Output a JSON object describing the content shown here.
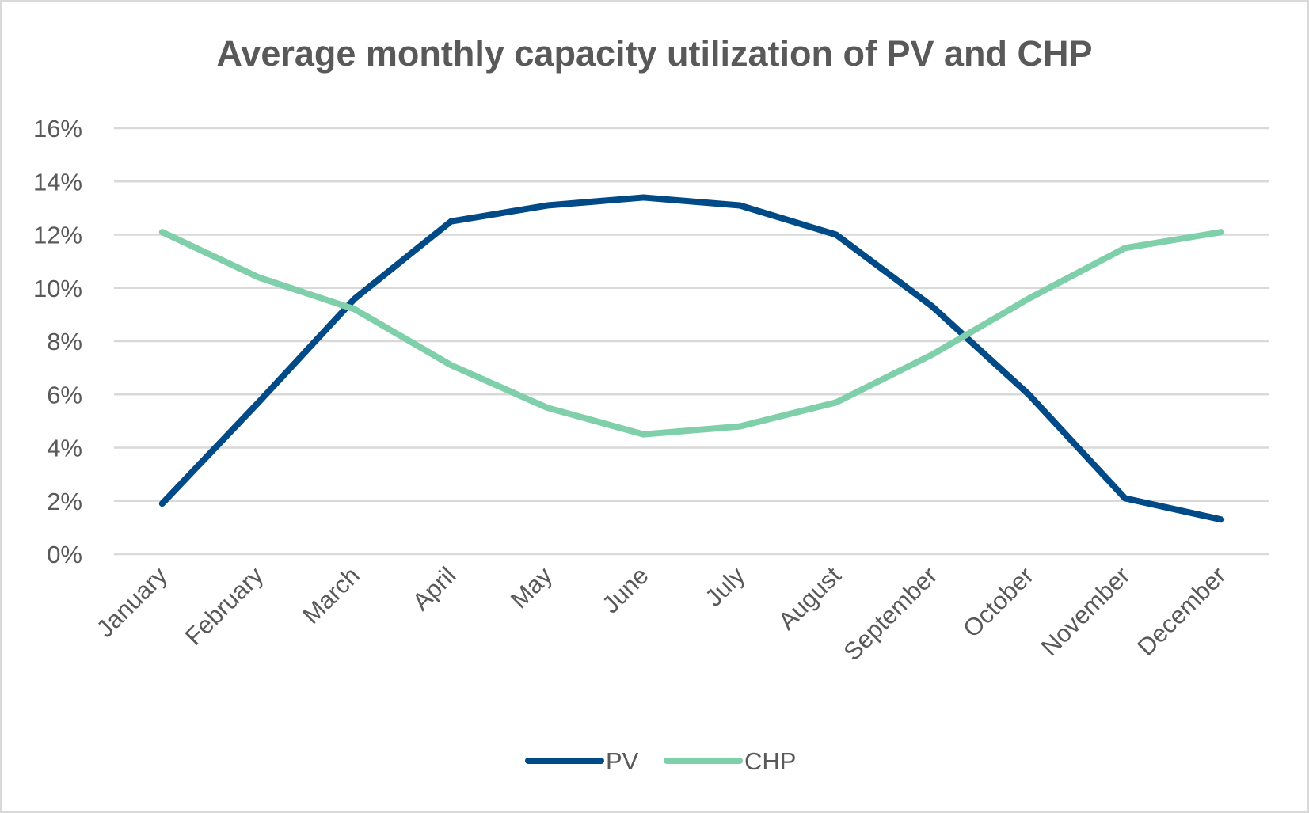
{
  "chart_data": {
    "type": "line",
    "title": "Average monthly capacity utilization of PV and CHP",
    "xlabel": "",
    "ylabel": "",
    "categories": [
      "January",
      "February",
      "March",
      "April",
      "May",
      "June",
      "July",
      "August",
      "September",
      "October",
      "November",
      "December"
    ],
    "series": [
      {
        "name": "PV",
        "color": "#004a87",
        "values": [
          1.9,
          5.7,
          9.6,
          12.5,
          13.1,
          13.4,
          13.1,
          12.0,
          9.3,
          6.0,
          2.1,
          1.3
        ]
      },
      {
        "name": "CHP",
        "color": "#7fd0aa",
        "values": [
          12.1,
          10.4,
          9.2,
          7.1,
          5.5,
          4.5,
          4.8,
          5.7,
          7.5,
          9.6,
          11.5,
          12.1
        ]
      }
    ],
    "ylim": [
      0,
      16
    ],
    "yticks": [
      "0%",
      "2%",
      "4%",
      "6%",
      "8%",
      "10%",
      "12%",
      "14%",
      "16%"
    ],
    "grid": true,
    "legend": "bottom"
  }
}
